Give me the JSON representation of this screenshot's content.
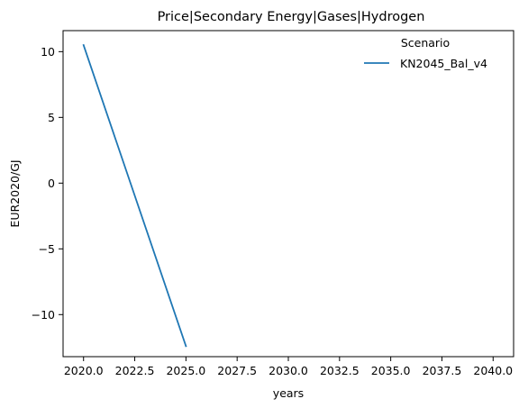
{
  "chart_data": {
    "type": "line",
    "title": "Price|Secondary Energy|Gases|Hydrogen",
    "xlabel": "years",
    "ylabel": "EUR2020/GJ",
    "xlim": [
      2019.0,
      2041.0
    ],
    "ylim": [
      -13.2,
      11.6
    ],
    "xticks": [
      2020.0,
      2022.5,
      2025.0,
      2027.5,
      2030.0,
      2032.5,
      2035.0,
      2037.5,
      2040.0
    ],
    "xtick_labels": [
      "2020.0",
      "2022.5",
      "2025.0",
      "2027.5",
      "2030.0",
      "2032.5",
      "2035.0",
      "2037.5",
      "2040.0"
    ],
    "yticks": [
      10,
      5,
      0,
      -5,
      -10
    ],
    "ytick_labels": [
      "10",
      "5",
      "0",
      "−5",
      "−10"
    ],
    "grid": false,
    "legend": {
      "title": "Scenario",
      "placement": "top-right"
    },
    "series": [
      {
        "name": "KN2045_Bal_v4",
        "color": "#1f77b4",
        "x": [
          2020,
          2025
        ],
        "y": [
          10.5,
          -12.4
        ]
      }
    ]
  }
}
